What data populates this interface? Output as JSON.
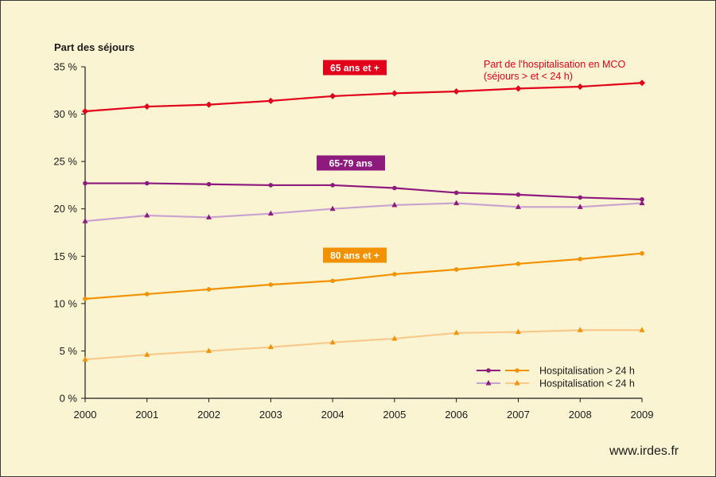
{
  "chart_data": {
    "type": "line",
    "ylabel": "Part des séjours",
    "ylim": [
      0,
      35
    ],
    "y_ticks": [
      {
        "value": 0,
        "label": "0 %"
      },
      {
        "value": 5,
        "label": "5 %"
      },
      {
        "value": 10,
        "label": "10 %"
      },
      {
        "value": 15,
        "label": "15 %"
      },
      {
        "value": 20,
        "label": "20 %"
      },
      {
        "value": 25,
        "label": "25 %"
      },
      {
        "value": 30,
        "label": "30 %"
      },
      {
        "value": 35,
        "label": "35 %"
      }
    ],
    "x": [
      "2000",
      "2001",
      "2002",
      "2003",
      "2004",
      "2005",
      "2006",
      "2007",
      "2008",
      "2009"
    ],
    "grid": false,
    "series": [
      {
        "key": "s65plus",
        "color": "#e2001a",
        "marker": "diamond",
        "values": [
          30.3,
          30.8,
          31.0,
          31.4,
          31.9,
          32.2,
          32.4,
          32.7,
          32.9,
          33.3
        ]
      },
      {
        "key": "s6579_gt24",
        "color": "#8e1a7e",
        "marker": "circle",
        "values": [
          22.7,
          22.7,
          22.6,
          22.5,
          22.5,
          22.2,
          21.7,
          21.5,
          21.2,
          21.0
        ]
      },
      {
        "key": "s6579_lt24",
        "color": "#c9a3cf",
        "marker": "triangle",
        "marker_color": "#8e1a7e",
        "values": [
          18.7,
          19.3,
          19.1,
          19.5,
          20.0,
          20.4,
          20.6,
          20.2,
          20.2,
          20.6
        ]
      },
      {
        "key": "s80plus_gt24",
        "color": "#f39200",
        "marker": "circle",
        "values": [
          10.5,
          11.0,
          11.5,
          12.0,
          12.4,
          13.1,
          13.6,
          14.2,
          14.7,
          15.3
        ]
      },
      {
        "key": "s80plus_lt24",
        "color": "#f9c98b",
        "marker": "triangle",
        "marker_color": "#f39200",
        "values": [
          4.1,
          4.6,
          5.0,
          5.4,
          5.9,
          6.3,
          6.9,
          7.0,
          7.2,
          7.2
        ]
      }
    ],
    "badges": [
      {
        "text": "65 ans et +",
        "color": "#e2001a"
      },
      {
        "text": "65-79 ans",
        "color": "#8e1a7e"
      },
      {
        "text": "80 ans et +",
        "color": "#f39200"
      }
    ],
    "annotation": {
      "line1": "Part de l'hospitalisation en MCO",
      "line2": "(séjours > et < 24 h)",
      "color": "#e2001a"
    },
    "legend": {
      "placement": "bottom-right",
      "entries": [
        {
          "label": "Hospitalisation > 24 h",
          "colors": [
            "#8e1a7e",
            "#f39200"
          ],
          "marker": "circle"
        },
        {
          "label": "Hospitalisation < 24 h",
          "colors": [
            "#c9a3cf",
            "#f9c98b"
          ],
          "marker": "triangle",
          "marker_colors": [
            "#8e1a7e",
            "#f39200"
          ]
        }
      ]
    }
  },
  "source": "www.irdes.fr"
}
